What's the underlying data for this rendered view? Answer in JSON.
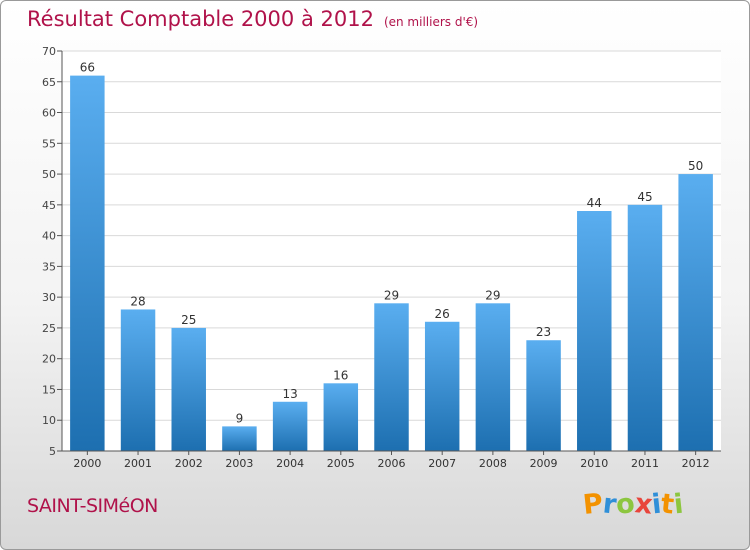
{
  "title": "Résultat Comptable 2000 à 2012",
  "subtitle": "(en milliers d'€)",
  "commune": "SAINT-SIMéON",
  "logo": {
    "letters": [
      "P",
      "r",
      "o",
      "x",
      "i",
      "t",
      "i"
    ],
    "colors": [
      "#f39200",
      "#2f8fd8",
      "#8cc63f",
      "#e8453c",
      "#2f8fd8",
      "#f39200",
      "#8cc63f"
    ]
  },
  "colors": {
    "title": "#b0124a",
    "bar_light": "#5aaef0",
    "bar_dark": "#1d6fb0",
    "grid": "#d9d9d9"
  },
  "chart_data": {
    "type": "bar",
    "categories": [
      "2000",
      "2001",
      "2002",
      "2003",
      "2004",
      "2005",
      "2006",
      "2007",
      "2008",
      "2009",
      "2010",
      "2011",
      "2012"
    ],
    "values": [
      66,
      28,
      25,
      9,
      13,
      16,
      29,
      26,
      29,
      23,
      44,
      45,
      50
    ],
    "ylim": [
      5,
      70
    ],
    "yticks": [
      5,
      10,
      15,
      20,
      25,
      30,
      35,
      40,
      45,
      50,
      55,
      60,
      65,
      70
    ],
    "grid": true
  }
}
